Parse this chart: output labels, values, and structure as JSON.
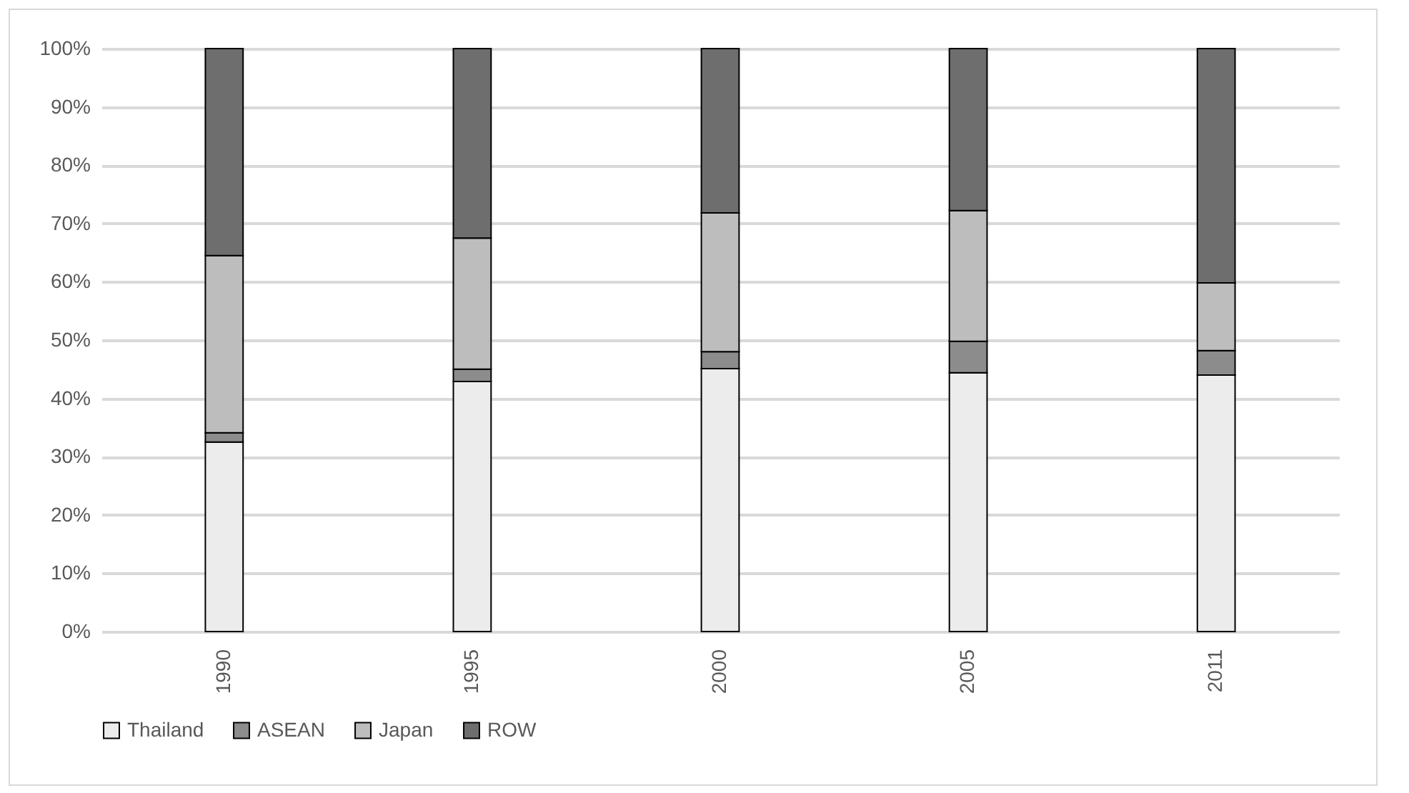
{
  "chart_data": {
    "type": "bar",
    "stacked": true,
    "categories": [
      "1990",
      "1995",
      "2000",
      "2005",
      "2011"
    ],
    "series": [
      {
        "name": "Thailand",
        "color": "#ececec",
        "values": [
          32.5,
          42.9,
          45.1,
          44.4,
          44.0
        ]
      },
      {
        "name": "ASEAN",
        "color": "#8c8c8c",
        "values": [
          1.6,
          2.1,
          2.9,
          5.4,
          4.2
        ]
      },
      {
        "name": "Japan",
        "color": "#bdbdbd",
        "values": [
          30.4,
          22.5,
          23.8,
          22.4,
          11.6
        ]
      },
      {
        "name": "ROW",
        "color": "#6e6e6e",
        "values": [
          35.5,
          32.5,
          28.2,
          27.8,
          40.2
        ]
      }
    ],
    "ylim": [
      0,
      100
    ],
    "yticks": [
      {
        "value": 0,
        "label": "0%"
      },
      {
        "value": 10,
        "label": "10%"
      },
      {
        "value": 20,
        "label": "20%"
      },
      {
        "value": 30,
        "label": "30%"
      },
      {
        "value": 40,
        "label": "40%"
      },
      {
        "value": 50,
        "label": "50%"
      },
      {
        "value": 60,
        "label": "60%"
      },
      {
        "value": 70,
        "label": "70%"
      },
      {
        "value": 80,
        "label": "80%"
      },
      {
        "value": 90,
        "label": "90%"
      },
      {
        "value": 100,
        "label": "100%"
      }
    ],
    "grid": "y",
    "legend": "bottom"
  }
}
